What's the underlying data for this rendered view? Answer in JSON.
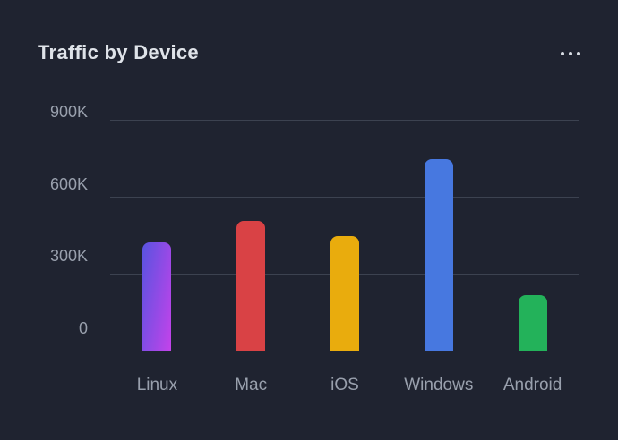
{
  "card": {
    "title": "Traffic by Device"
  },
  "colors": {
    "background": "#1f2330",
    "gridline": "#3c4250",
    "axis_label": "#99a0ad",
    "title": "#dfe3e9",
    "menu_dots": "#d8dce3"
  },
  "chart_data": {
    "type": "bar",
    "title": "Traffic by Device",
    "categories": [
      "Linux",
      "Mac",
      "iOS",
      "Windows",
      "Android"
    ],
    "values": [
      425000,
      510000,
      450000,
      750000,
      220000
    ],
    "xlabel": "",
    "ylabel": "",
    "ylim": [
      0,
      900000
    ],
    "yticks": [
      {
        "value": 900000,
        "label": "900K"
      },
      {
        "value": 600000,
        "label": "600K"
      },
      {
        "value": 300000,
        "label": "300K"
      },
      {
        "value": 0,
        "label": "0"
      }
    ],
    "grid": true,
    "legend": false,
    "bar_styles": [
      {
        "type": "gradient",
        "from": "#5853e0",
        "to": "#c443ea"
      },
      {
        "type": "solid",
        "color": "#d94245"
      },
      {
        "type": "solid",
        "color": "#e9ac0d"
      },
      {
        "type": "solid",
        "color": "#4778e0"
      },
      {
        "type": "solid",
        "color": "#23b25a"
      }
    ]
  }
}
